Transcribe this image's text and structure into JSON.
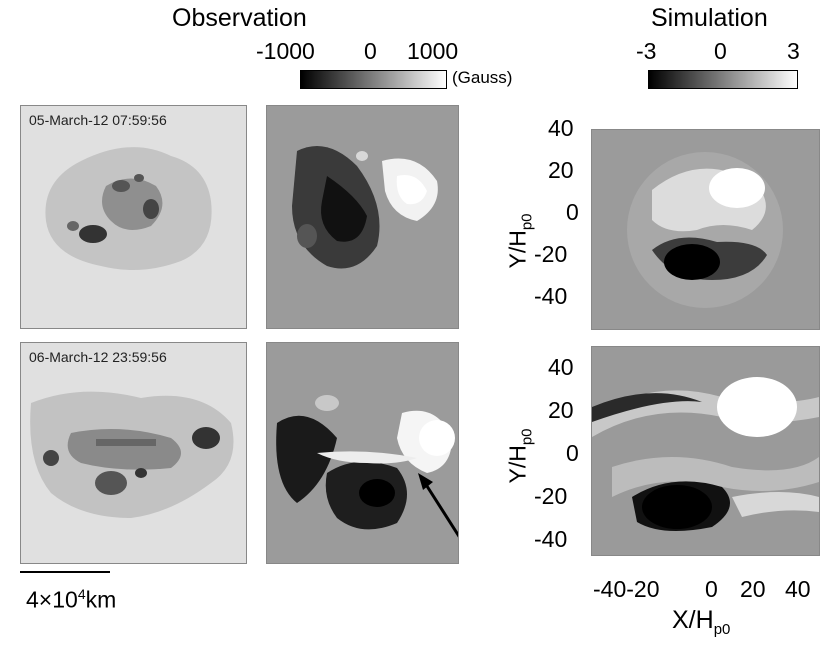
{
  "headers": {
    "observation": "Observation",
    "simulation": "Simulation"
  },
  "observation_colorbar": {
    "ticks": [
      "-1000",
      "0",
      "1000"
    ],
    "unit": "(Gauss)"
  },
  "simulation_colorbar": {
    "ticks": [
      "-3",
      "0",
      "3"
    ]
  },
  "timestamps": {
    "row1": "05-March-12 07:59:56",
    "row2": "06-March-12 23:59:56"
  },
  "y_axis": {
    "label_main": "Y/H",
    "label_sub": "p0",
    "ticks": [
      "40",
      "20",
      "0",
      "-20",
      "-40"
    ]
  },
  "x_axis": {
    "label_main": "X/H",
    "label_sub": "p0",
    "ticks": [
      "-40-20",
      "0",
      "20",
      "40"
    ]
  },
  "scale_bar": {
    "prefix": "4×10",
    "exponent": "4",
    "suffix": "km"
  }
}
